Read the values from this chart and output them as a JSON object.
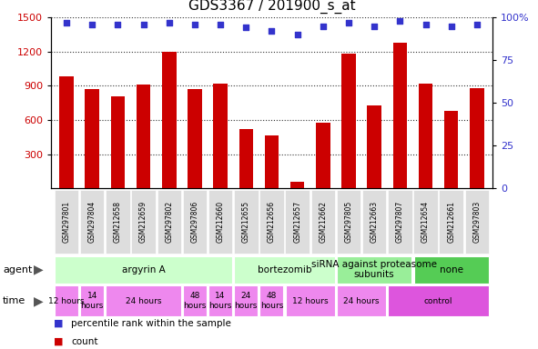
{
  "title": "GDS3367 / 201900_s_at",
  "samples": [
    "GSM297801",
    "GSM297804",
    "GSM212658",
    "GSM212659",
    "GSM297802",
    "GSM297806",
    "GSM212660",
    "GSM212655",
    "GSM212656",
    "GSM212657",
    "GSM212662",
    "GSM297805",
    "GSM212663",
    "GSM297807",
    "GSM212654",
    "GSM212661",
    "GSM297803"
  ],
  "counts": [
    980,
    870,
    810,
    910,
    1200,
    870,
    920,
    520,
    465,
    55,
    580,
    1180,
    730,
    1280,
    920,
    680,
    880
  ],
  "percentiles": [
    97,
    96,
    96,
    96,
    97,
    96,
    96,
    94,
    92,
    90,
    95,
    97,
    95,
    98,
    96,
    95,
    96
  ],
  "bar_color": "#cc0000",
  "dot_color": "#3333cc",
  "ylim_left": [
    0,
    1500
  ],
  "ylim_right": [
    0,
    100
  ],
  "yticks_left": [
    300,
    600,
    900,
    1200,
    1500
  ],
  "yticks_right": [
    0,
    25,
    50,
    75,
    100
  ],
  "agent_groups": [
    {
      "label": "argyrin A",
      "start": 0,
      "end": 7,
      "color": "#ccffcc"
    },
    {
      "label": "bortezomib",
      "start": 7,
      "end": 11,
      "color": "#ccffcc"
    },
    {
      "label": "siRNA against proteasome\nsubunits",
      "start": 11,
      "end": 14,
      "color": "#99ee99"
    },
    {
      "label": "none",
      "start": 14,
      "end": 17,
      "color": "#55cc55"
    }
  ],
  "time_groups": [
    {
      "label": "12 hours",
      "start": 0,
      "end": 1,
      "color": "#ee88ee"
    },
    {
      "label": "14\nhours",
      "start": 1,
      "end": 2,
      "color": "#ee88ee"
    },
    {
      "label": "24 hours",
      "start": 2,
      "end": 5,
      "color": "#ee88ee"
    },
    {
      "label": "48\nhours",
      "start": 5,
      "end": 6,
      "color": "#ee88ee"
    },
    {
      "label": "14\nhours",
      "start": 6,
      "end": 7,
      "color": "#ee88ee"
    },
    {
      "label": "24\nhours",
      "start": 7,
      "end": 8,
      "color": "#ee88ee"
    },
    {
      "label": "48\nhours",
      "start": 8,
      "end": 9,
      "color": "#ee88ee"
    },
    {
      "label": "12 hours",
      "start": 9,
      "end": 11,
      "color": "#ee88ee"
    },
    {
      "label": "24 hours",
      "start": 11,
      "end": 13,
      "color": "#ee88ee"
    },
    {
      "label": "control",
      "start": 13,
      "end": 17,
      "color": "#dd55dd"
    }
  ],
  "legend_count_color": "#cc0000",
  "legend_dot_color": "#3333cc",
  "sample_box_color": "#dddddd",
  "title_color": "#000000",
  "title_fontsize": 11
}
